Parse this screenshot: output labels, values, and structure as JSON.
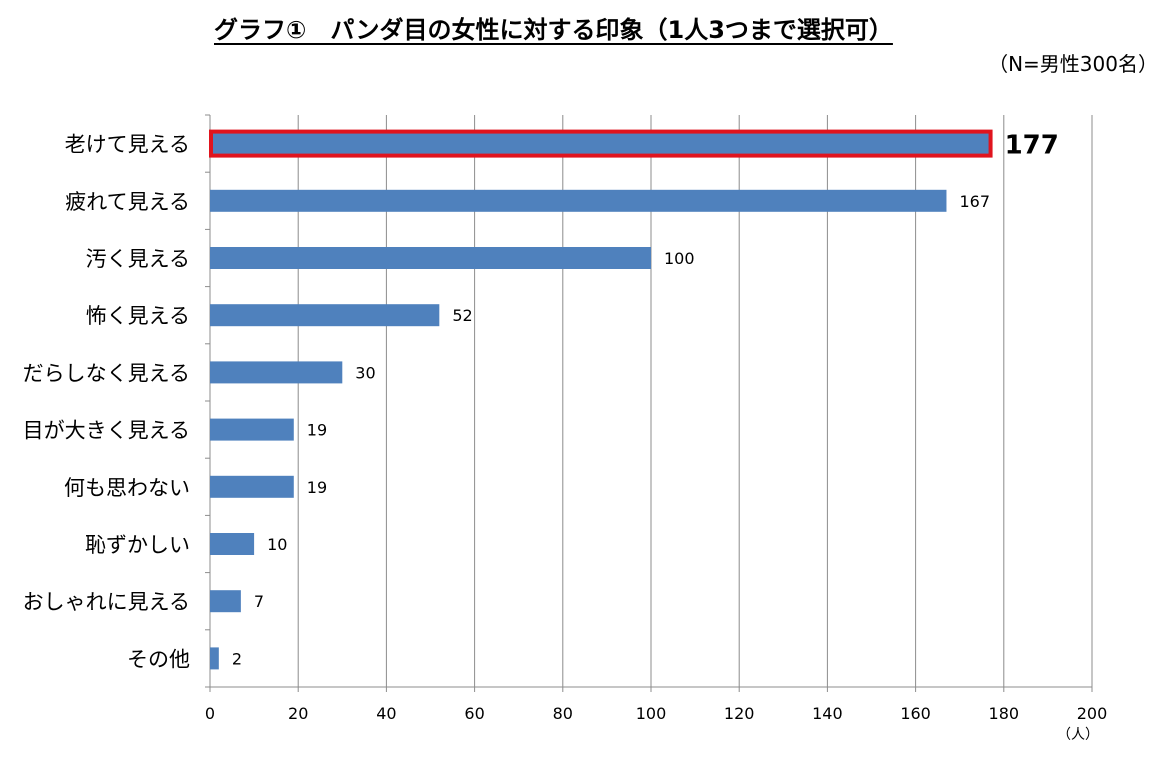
{
  "chart_data": {
    "type": "bar",
    "orientation": "horizontal",
    "title": "グラフ①　パンダ目の女性に対する印象（1人3つまで選択可）",
    "subtitle": "（N=男性300名）",
    "unit_label": "（人）",
    "categories": [
      "老けて見える",
      "疲れて見える",
      "汚く見える",
      "怖く見える",
      "だらしなく見える",
      "目が大きく見える",
      "何も思わない",
      "恥ずかしい",
      "おしゃれに見える",
      "その他"
    ],
    "values": [
      177,
      167,
      100,
      52,
      30,
      19,
      19,
      10,
      7,
      2
    ],
    "data_labels": [
      "177",
      "167",
      "100",
      "52",
      "30",
      "19",
      "19",
      "10",
      "7",
      "2"
    ],
    "xlim": [
      0,
      200
    ],
    "xticks": [
      0,
      20,
      40,
      60,
      80,
      100,
      120,
      140,
      160,
      180,
      200
    ],
    "tick_labels": [
      "0",
      "20",
      "40",
      "60",
      "80",
      "100",
      "120",
      "140",
      "160",
      "180",
      "200"
    ],
    "grid": "vertical",
    "highlight_index": 0,
    "colors": {
      "bar": "#4F81BD",
      "highlight_border": "#E0141E",
      "grid": "#8C8C8C"
    }
  }
}
